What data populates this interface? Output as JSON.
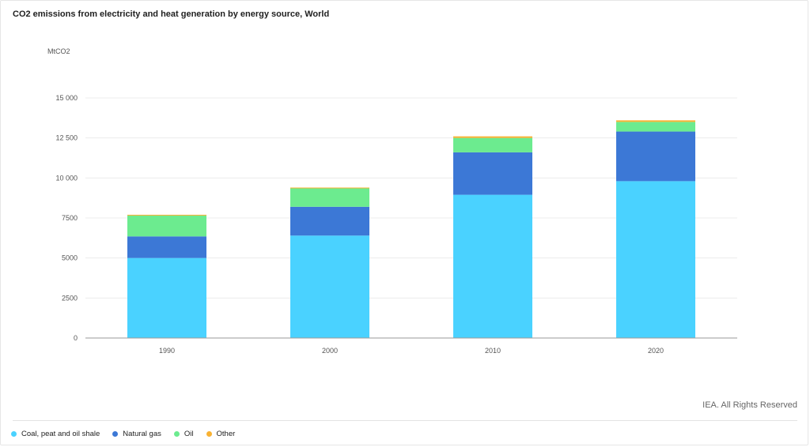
{
  "chart_data": {
    "type": "bar",
    "stacked": true,
    "title": "CO2 emissions from electricity and heat generation by energy source, World",
    "unit_label": "MtCO2",
    "categories": [
      "1990",
      "2000",
      "2010",
      "2020"
    ],
    "ylim": [
      0,
      15000
    ],
    "y_ticks": [
      0,
      2500,
      5000,
      7500,
      10000,
      12500,
      15000
    ],
    "y_tick_labels": [
      "0",
      "2500",
      "5000",
      "7500",
      "10 000",
      "12 500",
      "15 000"
    ],
    "grid": true,
    "legend_position": "bottom-left",
    "series": [
      {
        "name": "Coal, peat and oil shale",
        "color": "#4ad2ff",
        "values": [
          5000,
          6400,
          8950,
          9800
        ]
      },
      {
        "name": "Natural gas",
        "color": "#3c78d6",
        "values": [
          1350,
          1800,
          2650,
          3100
        ]
      },
      {
        "name": "Oil",
        "color": "#6ceb8f",
        "values": [
          1300,
          1150,
          900,
          600
        ]
      },
      {
        "name": "Other",
        "color": "#f9b233",
        "values": [
          50,
          50,
          100,
          100
        ]
      }
    ]
  },
  "footer": {
    "credit": "IEA. All Rights Reserved"
  }
}
